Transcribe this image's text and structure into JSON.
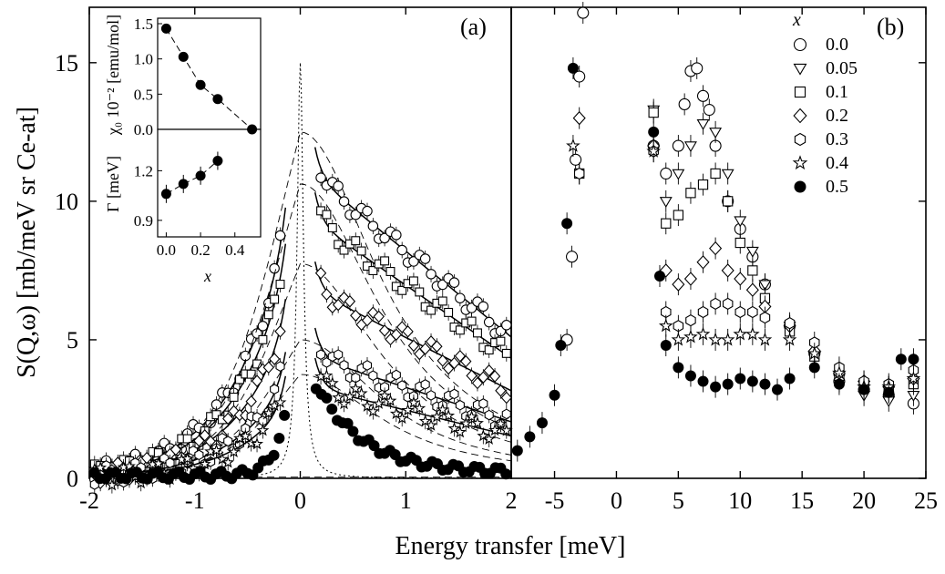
{
  "chart_data": {
    "type": "scatter",
    "ylabel": "S(Q,ω) [mb/meV sr Ce-at]",
    "xlabel": "Energy transfer [meV]",
    "ylim": [
      0,
      17
    ],
    "y_ticks": [
      "0",
      "5",
      "10",
      "15"
    ],
    "y_tick_values": [
      0,
      5,
      10,
      15
    ],
    "panels": [
      {
        "label": "(a)",
        "xlim": [
          -2,
          2
        ],
        "x_ticks": [
          "-2",
          "-1",
          "0",
          "1",
          "2"
        ],
        "x_tick_values": [
          -2,
          -1,
          0,
          1,
          2
        ]
      },
      {
        "label": "(b)",
        "xlim": [
          -8.5,
          25
        ],
        "x_ticks": [
          "-5",
          "0",
          "5",
          "10",
          "15",
          "20",
          "25"
        ],
        "x_tick_values": [
          -5,
          0,
          5,
          10,
          15,
          20,
          25
        ]
      }
    ],
    "legend": {
      "title": "x",
      "position": "top-right",
      "entries": [
        {
          "label": "0.0",
          "marker": "circle-open"
        },
        {
          "label": "0.05",
          "marker": "triangle-down-open"
        },
        {
          "label": "0.1",
          "marker": "square-open"
        },
        {
          "label": "0.2",
          "marker": "diamond-open"
        },
        {
          "label": "0.3",
          "marker": "hexagon-open"
        },
        {
          "label": "0.4",
          "marker": "star-open"
        },
        {
          "label": "0.5",
          "marker": "circle-filled"
        }
      ]
    },
    "series_b": [
      {
        "name": "0.0",
        "x": [
          -4,
          -3.6,
          -3.3,
          -3.0,
          -2.7,
          3.0,
          4.0,
          5.0,
          5.5,
          6.0,
          6.5,
          7.0,
          7.5,
          8.0,
          9.0,
          10.0,
          11.0,
          12.0,
          14.0,
          16.0,
          18.0,
          20.0,
          22.0,
          24.0,
          25.0
        ],
        "y": [
          5.0,
          8.0,
          11.5,
          14.5,
          16.8,
          12.0,
          11.0,
          12.0,
          13.5,
          14.7,
          14.8,
          13.8,
          13.3,
          12.0,
          10.0,
          9.0,
          8.0,
          7.0,
          5.5,
          4.5,
          3.5,
          3.2,
          3.0,
          2.7,
          2.5
        ]
      },
      {
        "name": "0.05",
        "x": [
          3.0,
          4.0,
          5.0,
          6.0,
          7.0,
          8.0,
          9.0,
          10.0,
          11.0,
          12.0,
          14.0,
          16.0,
          18.0,
          20.0,
          22.0,
          24.0
        ],
        "y": [
          13.3,
          10.0,
          11.0,
          12.0,
          12.8,
          12.5,
          11.0,
          9.3,
          8.2,
          7.0,
          5.5,
          4.4,
          3.6,
          3.0,
          2.8,
          3.0
        ]
      },
      {
        "name": "0.1",
        "x": [
          -3.0,
          3.0,
          4.0,
          5.0,
          6.0,
          7.0,
          8.0,
          9.0,
          10.0,
          11.0,
          12.0,
          14.0,
          16.0,
          18.0,
          20.0,
          22.0,
          24.0
        ],
        "y": [
          11.0,
          13.2,
          9.2,
          9.5,
          10.3,
          10.6,
          11.0,
          10.0,
          8.5,
          7.5,
          6.5,
          5.3,
          4.4,
          3.7,
          3.3,
          3.1,
          3.4
        ]
      },
      {
        "name": "0.2",
        "x": [
          -3.0,
          3.0,
          4.0,
          5.0,
          6.0,
          7.0,
          8.0,
          9.0,
          10.0,
          11.0,
          12.0,
          14.0,
          16.0,
          18.0,
          20.0,
          22.0,
          24.0
        ],
        "y": [
          13.0,
          12.0,
          7.5,
          7.0,
          7.2,
          7.8,
          8.3,
          7.5,
          7.2,
          6.8,
          6.2,
          5.5,
          4.6,
          3.8,
          3.5,
          3.3,
          3.6
        ]
      },
      {
        "name": "0.3",
        "x": [
          -3.0,
          3.0,
          4.0,
          5.0,
          6.0,
          7.0,
          8.0,
          9.0,
          10.0,
          11.0,
          12.0,
          14.0,
          16.0,
          18.0,
          20.0,
          22.0,
          24.0
        ],
        "y": [
          11.0,
          11.8,
          6.0,
          5.5,
          5.7,
          6.0,
          6.3,
          6.3,
          6.0,
          6.0,
          5.8,
          5.6,
          4.9,
          4.0,
          3.5,
          3.4,
          3.9
        ]
      },
      {
        "name": "0.4",
        "x": [
          -3.5,
          3.0,
          4.0,
          5.0,
          6.0,
          7.0,
          8.0,
          9.0,
          10.0,
          11.0,
          12.0,
          14.0,
          16.0,
          18.0,
          20.0,
          22.0,
          24.0
        ],
        "y": [
          12.0,
          11.8,
          5.5,
          5.0,
          5.1,
          5.2,
          5.0,
          5.0,
          5.2,
          5.2,
          5.0,
          5.0,
          4.5,
          3.8,
          3.3,
          3.3,
          3.6
        ]
      },
      {
        "name": "0.5",
        "x": [
          -8.0,
          -7.0,
          -6.0,
          -5.0,
          -4.5,
          -4.0,
          -3.5,
          3.0,
          3.5,
          4.0,
          5.0,
          6.0,
          7.0,
          8.0,
          9.0,
          10.0,
          11.0,
          12.0,
          13.0,
          14.0,
          16.0,
          18.0,
          20.0,
          22.0,
          23.0,
          24.0,
          25.0
        ],
        "y": [
          1.0,
          1.5,
          2.0,
          3.0,
          4.8,
          9.2,
          14.8,
          12.5,
          7.3,
          4.8,
          4.0,
          3.7,
          3.5,
          3.3,
          3.4,
          3.6,
          3.5,
          3.4,
          3.2,
          3.6,
          4.0,
          3.4,
          3.2,
          3.1,
          4.3,
          4.3,
          3.9
        ]
      }
    ],
    "series_a_scale": [
      1.0,
      0.85,
      0.62,
      0.4,
      0.3
    ],
    "inset": {
      "top": {
        "ylabel": "χ₀ 10⁻² [emu/mol]",
        "ylim": [
          0,
          1.5
        ],
        "y_ticks": [
          "0.0",
          "0.5",
          "1.0",
          "1.5"
        ],
        "y_tick_values": [
          0,
          0.5,
          1.0,
          1.5
        ],
        "x": [
          0.0,
          0.1,
          0.2,
          0.3,
          0.5
        ],
        "y": [
          1.43,
          1.03,
          0.63,
          0.43,
          0.0
        ]
      },
      "bottom": {
        "ylabel": "Γ [meV]",
        "ylim": [
          0.8,
          1.45
        ],
        "y_ticks": [
          "0.9",
          "1.2"
        ],
        "y_tick_values": [
          0.9,
          1.2
        ],
        "x": [
          0.0,
          0.1,
          0.2,
          0.3
        ],
        "y": [
          1.06,
          1.12,
          1.17,
          1.26
        ]
      },
      "xlabel": "x",
      "xlim": [
        -0.05,
        0.55
      ],
      "x_ticks": [
        "0.0",
        "0.2",
        "0.4"
      ],
      "x_tick_values": [
        0.0,
        0.2,
        0.4
      ]
    }
  }
}
